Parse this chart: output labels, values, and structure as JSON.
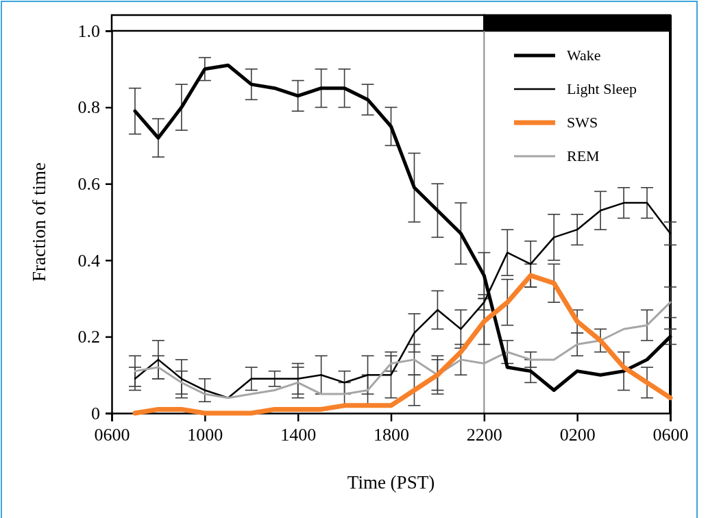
{
  "chart_data": {
    "type": "line",
    "xlabel": "Time (PST)",
    "ylabel": "Fraction of time",
    "categories": [
      "0600",
      null,
      null,
      null,
      "1000",
      null,
      null,
      null,
      "1400",
      null,
      null,
      null,
      "1800",
      null,
      null,
      null,
      "2200",
      null,
      null,
      null,
      "0200",
      null,
      null,
      null,
      "0600"
    ],
    "ylim": [
      0,
      1
    ],
    "yticks": [
      0,
      0.2,
      0.4,
      0.6,
      0.8,
      {
        "value": 1,
        "label": "1.0"
      }
    ],
    "legend": "top right",
    "ref_lines": [
      {
        "axis": "x",
        "value": "2200",
        "color": "#8c8c8c"
      }
    ],
    "series": [
      {
        "name": "Wake",
        "color": "#000000",
        "values": [
          null,
          0.79,
          0.72,
          0.8,
          0.9,
          0.91,
          0.86,
          0.85,
          0.83,
          0.85,
          0.85,
          0.82,
          0.75,
          0.59,
          0.53,
          0.47,
          0.36,
          0.12,
          0.11,
          0.06,
          0.11,
          0.1,
          0.11,
          0.14,
          0.2
        ],
        "errors": [
          null,
          0.06,
          0.05,
          0.06,
          0.03,
          null,
          0.04,
          null,
          0.04,
          0.05,
          0.05,
          0.04,
          0.05,
          0.09,
          0.07,
          0.08,
          0.06,
          null,
          0.03,
          null,
          null,
          null,
          0.05,
          null,
          0.02
        ]
      },
      {
        "name": "Light Sleep",
        "color": "#000000",
        "values": [
          null,
          0.09,
          0.14,
          0.09,
          0.06,
          0.04,
          0.09,
          0.09,
          0.09,
          0.1,
          0.08,
          0.1,
          0.1,
          0.21,
          0.27,
          0.22,
          0.29,
          0.42,
          0.39,
          0.46,
          0.48,
          0.53,
          0.55,
          0.55,
          0.47
        ],
        "errors": [
          null,
          0.03,
          0.05,
          0.05,
          0.03,
          null,
          0.03,
          0.02,
          0.04,
          0.05,
          0.03,
          0.05,
          0.06,
          0.05,
          0.05,
          0.05,
          0.02,
          0.06,
          0.06,
          0.06,
          0.04,
          0.05,
          0.04,
          0.04,
          0.03
        ]
      },
      {
        "name": "SWS",
        "color": "#f7812a",
        "values": [
          null,
          0.0,
          0.01,
          0.01,
          0.0,
          0.0,
          0.0,
          0.01,
          0.01,
          0.01,
          0.02,
          0.02,
          0.02,
          0.06,
          0.1,
          0.16,
          0.24,
          0.29,
          0.36,
          0.34,
          0.24,
          0.19,
          0.12,
          0.08,
          0.04
        ],
        "errors": [
          null,
          null,
          null,
          null,
          null,
          null,
          null,
          null,
          null,
          null,
          null,
          null,
          null,
          0.04,
          0.04,
          null,
          0.06,
          0.06,
          0.03,
          0.05,
          0.03,
          0.03,
          null,
          0.04,
          null
        ]
      },
      {
        "name": "REM",
        "color": "#a6a6a6",
        "values": [
          null,
          0.11,
          0.12,
          0.08,
          0.05,
          0.04,
          0.05,
          0.06,
          0.08,
          0.05,
          0.05,
          0.06,
          0.13,
          0.14,
          0.1,
          0.14,
          0.13,
          0.16,
          0.14,
          0.14,
          0.18,
          0.19,
          0.22,
          0.23,
          0.29
        ],
        "errors": [
          null,
          0.04,
          0.03,
          0.03,
          null,
          null,
          null,
          null,
          0.04,
          null,
          0.03,
          0.04,
          0.02,
          0.04,
          0.05,
          0.04,
          null,
          0.03,
          0.02,
          null,
          0.03,
          null,
          null,
          0.04,
          0.04
        ]
      }
    ]
  }
}
